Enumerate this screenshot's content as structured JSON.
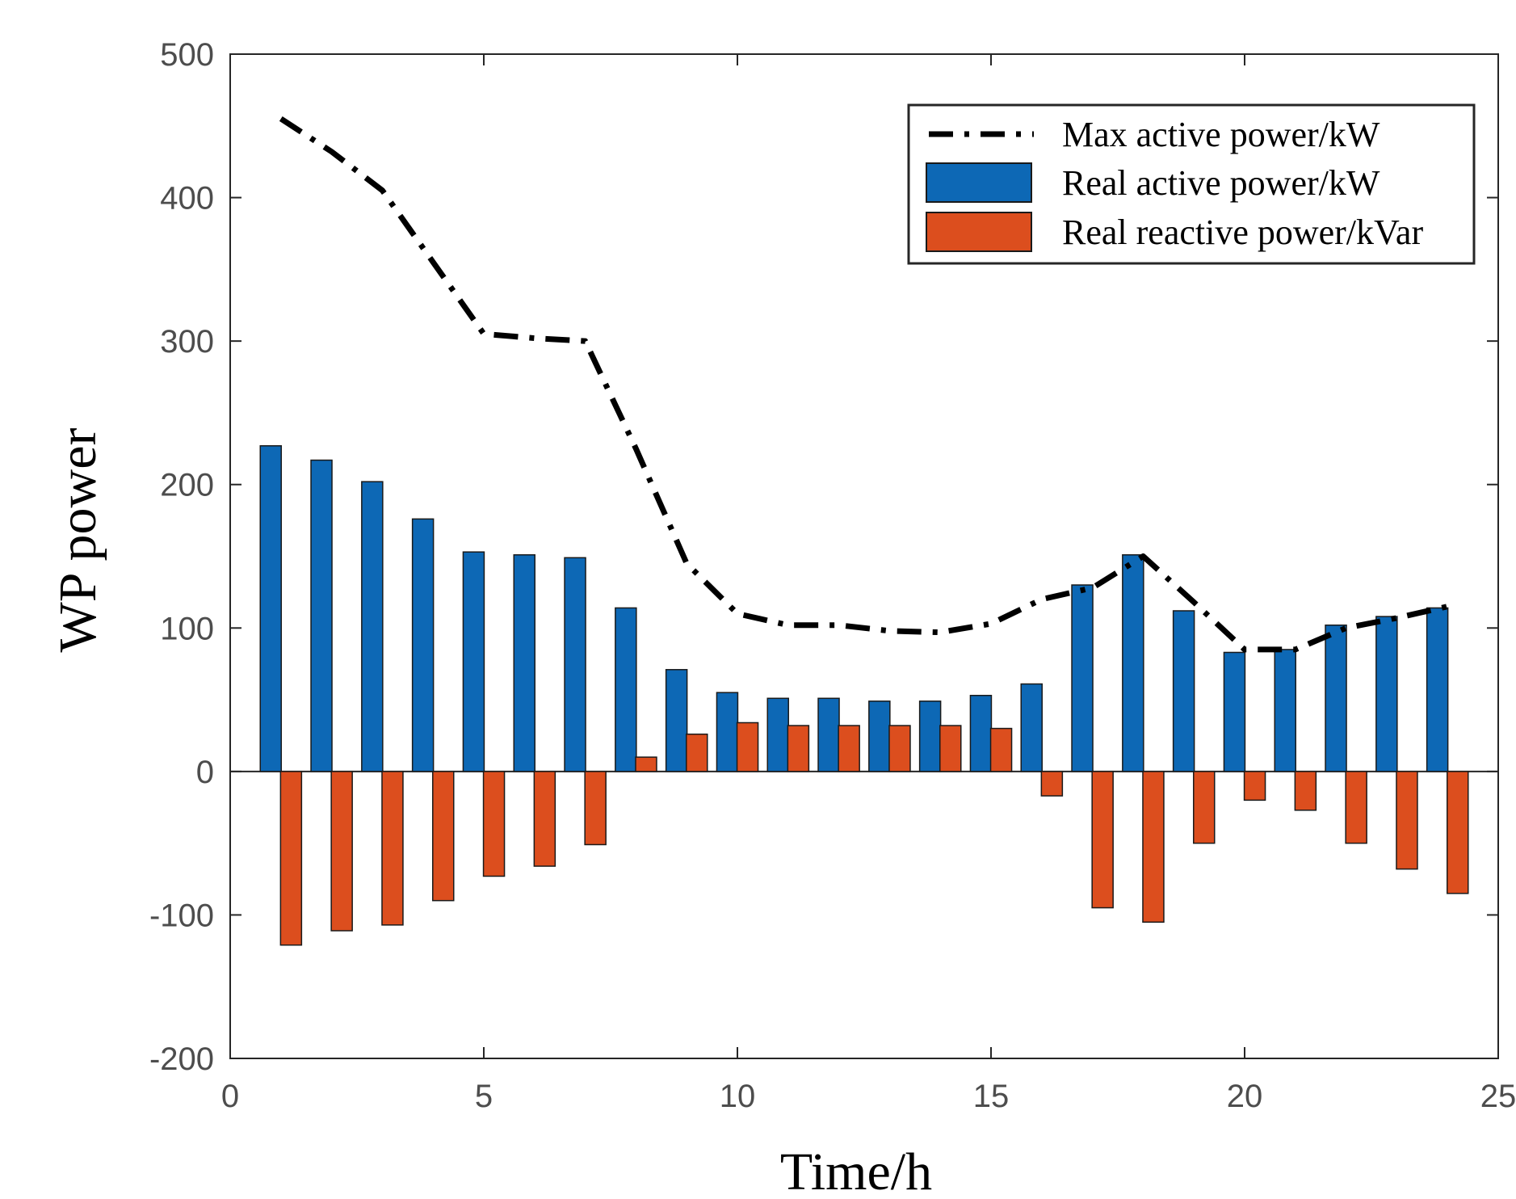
{
  "chart_data": {
    "type": "bar",
    "xlabel": "Time/h",
    "ylabel": "WP power",
    "xlim": [
      0,
      25
    ],
    "ylim": [
      -200,
      500
    ],
    "xticks": [
      "0",
      "5",
      "10",
      "15",
      "20",
      "25"
    ],
    "yticks": [
      "500",
      "400",
      "300",
      "200",
      "100",
      "0",
      "-100",
      "-200"
    ],
    "grid": false,
    "legend_position": "top-right",
    "x": [
      1,
      2,
      3,
      4,
      5,
      6,
      7,
      8,
      9,
      10,
      11,
      12,
      13,
      14,
      15,
      16,
      17,
      18,
      19,
      20,
      21,
      22,
      23,
      24
    ],
    "series": [
      {
        "name": "Max active power/kW",
        "style": "dash-dot line",
        "color": "#000000",
        "values": [
          455,
          432,
          405,
          355,
          305,
          302,
          300,
          225,
          145,
          110,
          102,
          102,
          98,
          97,
          103,
          120,
          128,
          150,
          118,
          85,
          85,
          100,
          107,
          115
        ]
      },
      {
        "name": "Real active power/kW",
        "style": "bar",
        "color": "#0d68b5",
        "values": [
          227,
          217,
          202,
          176,
          153,
          151,
          149,
          114,
          71,
          55,
          51,
          51,
          49,
          49,
          53,
          61,
          130,
          151,
          112,
          83,
          85,
          102,
          108,
          114
        ]
      },
      {
        "name": "Real reactive power/kVar",
        "style": "bar",
        "color": "#dc4e1e",
        "values": [
          -121,
          -111,
          -107,
          -90,
          -73,
          -66,
          -51,
          10,
          26,
          34,
          32,
          32,
          32,
          32,
          30,
          -17,
          -95,
          -105,
          -50,
          -20,
          -27,
          -50,
          -68,
          -85
        ]
      }
    ]
  }
}
